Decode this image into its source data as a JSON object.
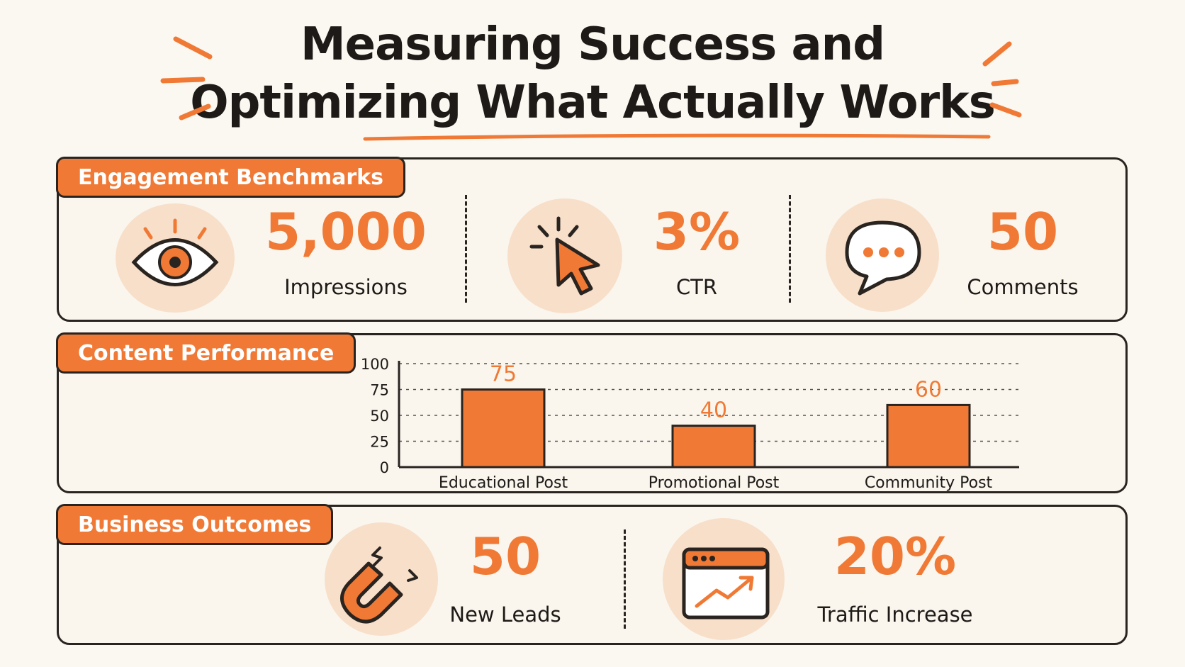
{
  "title": {
    "line1": "Measuring Success and",
    "line2": "Optimizing What Actually Works"
  },
  "colors": {
    "accent": "#f07a35",
    "soft": "#f8dfc9",
    "ink": "#2a2420",
    "bg": "#fbf8f2"
  },
  "engagement": {
    "heading": "Engagement Benchmarks",
    "metrics": [
      {
        "icon": "eye-icon",
        "value": "5,000",
        "label": "Impressions"
      },
      {
        "icon": "cursor-click-icon",
        "value": "3%",
        "label": "CTR"
      },
      {
        "icon": "speech-bubble-icon",
        "value": "50",
        "label": "Comments"
      }
    ]
  },
  "content": {
    "heading": "Content Performance"
  },
  "chart_data": {
    "type": "bar",
    "categories": [
      "Educational Post",
      "Promotional Post",
      "Community Post"
    ],
    "values": [
      75,
      40,
      60
    ],
    "data_labels": [
      "75",
      "40",
      "60"
    ],
    "yticks": [
      "0",
      "25",
      "50",
      "75",
      "100"
    ],
    "ylim": [
      0,
      100
    ],
    "grid": true,
    "bar_color": "#f07a35"
  },
  "business": {
    "heading": "Business Outcomes",
    "metrics": [
      {
        "icon": "magnet-icon",
        "value": "50",
        "label": "New Leads"
      },
      {
        "icon": "trending-browser-icon",
        "value": "20%",
        "label": "Traffic Increase"
      }
    ]
  }
}
